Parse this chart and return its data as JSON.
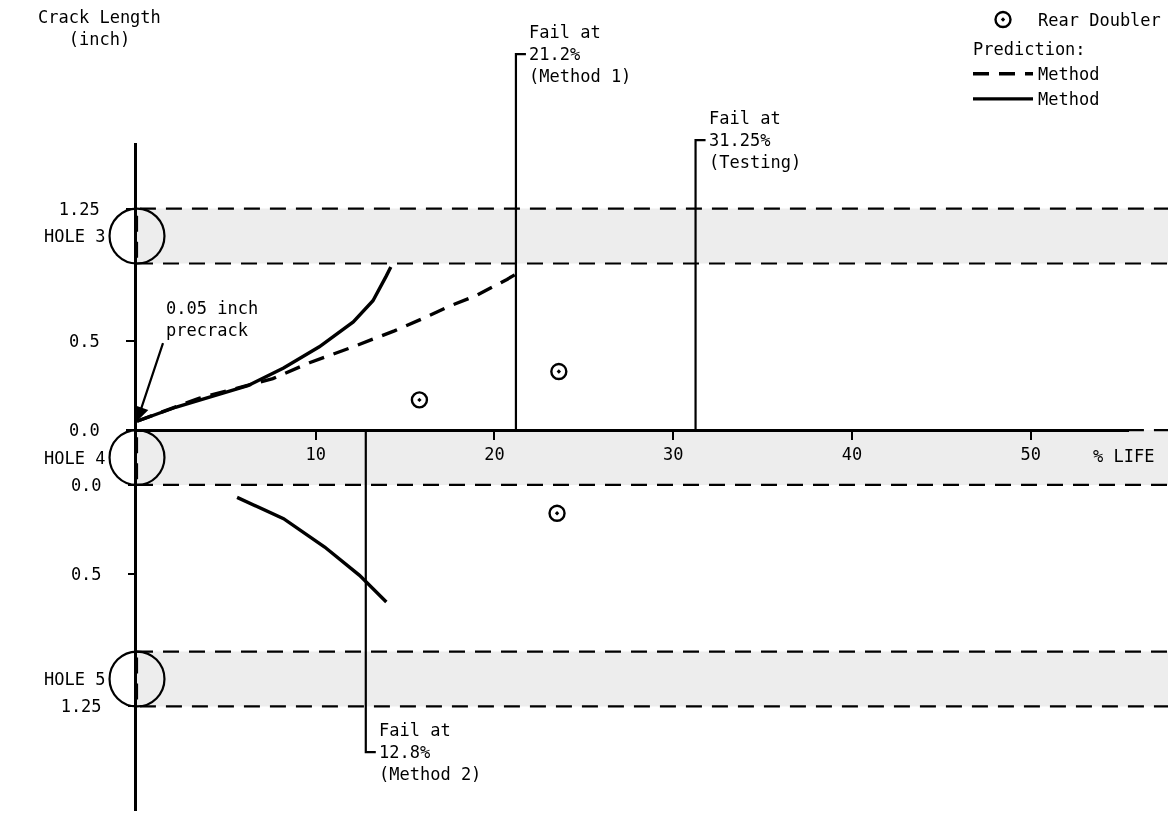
{
  "chart_data": {
    "type": "line",
    "xlabel": "% LIFE",
    "legend_title": "Prediction:",
    "legend": "top right",
    "xlim": [
      0,
      55.5
    ],
    "xticks": [
      10,
      20,
      30,
      40,
      50
    ],
    "ylim": [
      -2.15,
      1.62
    ],
    "yticks": [
      1.25,
      0.5,
      {
        "value": 0,
        "label": "0.0"
      }
    ],
    "y2lim": [
      1.84,
      -1.93
    ],
    "y2ticks": [
      {
        "value": 0,
        "label": "0.0"
      },
      0.5,
      1.25
    ],
    "series": [
      {
        "name": "Rear Doubler",
        "type": "scatter",
        "marker": "circle",
        "color": "#000000",
        "values": [
          null
        ]
      },
      {
        "name": "Method",
        "line_style": "dashed",
        "color": "#000000",
        "x": [
          0,
          3.5,
          7.6,
          9.65,
          12.1,
          14.4,
          16.0,
          17.5,
          19.0,
          20.7,
          21.2
        ],
        "values": [
          0.05,
          0.18,
          0.29,
          0.38,
          0.47,
          0.56,
          0.63,
          0.7,
          0.76,
          0.85,
          0.88
        ]
      },
      {
        "name": "Method",
        "line_style": "solid",
        "color": "#000000",
        "x": [
          0,
          2.2,
          4.2,
          6.2,
          8.2,
          10.2,
          12.1,
          13.2,
          13.95,
          14.2
        ],
        "values": [
          0.05,
          0.13,
          0.19,
          0.25,
          0.35,
          0.47,
          0.61,
          0.73,
          0.87,
          0.92
        ]
      },
      {
        "axis": "y2",
        "line_style": "solid",
        "color": "#000000",
        "x": [
          5.6,
          8.2,
          10.5,
          12.45,
          13.95
        ],
        "values": [
          0.07,
          0.19,
          0.35,
          0.51,
          0.66
        ]
      },
      {
        "type": "scatter",
        "marker": "circle",
        "color": "#000000",
        "x": [
          15.8,
          23.6
        ],
        "values": [
          0.17,
          0.33
        ]
      },
      {
        "type": "scatter",
        "marker": "circle",
        "color": "#000000",
        "axis": "y2",
        "x": [
          23.5
        ],
        "values": [
          0.16
        ]
      }
    ],
    "bands": [
      {
        "axis": "y",
        "from": 0.94,
        "to": 1.25,
        "label": "HOLE 3",
        "color": "#000000"
      },
      {
        "axis": "y",
        "from": -0.31,
        "to": 0,
        "label": "HOLE 4",
        "color": "#000000"
      },
      {
        "axis": "y2",
        "from": 0.94,
        "to": 1.25,
        "label": "HOLE 5",
        "color": "#000000"
      }
    ],
    "ref_lines": [
      {
        "axis": "x",
        "value": 21.2,
        "label": "Fail at\n21.2%\n(Method 1)"
      },
      {
        "axis": "x",
        "value": 31.25,
        "label": "Fail at\n31.25%\n(Testing)"
      },
      {
        "axis": "x",
        "value": 12.8,
        "label": "Fail at\n12.8%\n(Method 2)"
      }
    ],
    "annotations": [
      "Crack Length\n(inch)",
      {
        "text": "0.05 inch\nprecrack",
        "x": 0,
        "y": 0.05
      }
    ]
  }
}
